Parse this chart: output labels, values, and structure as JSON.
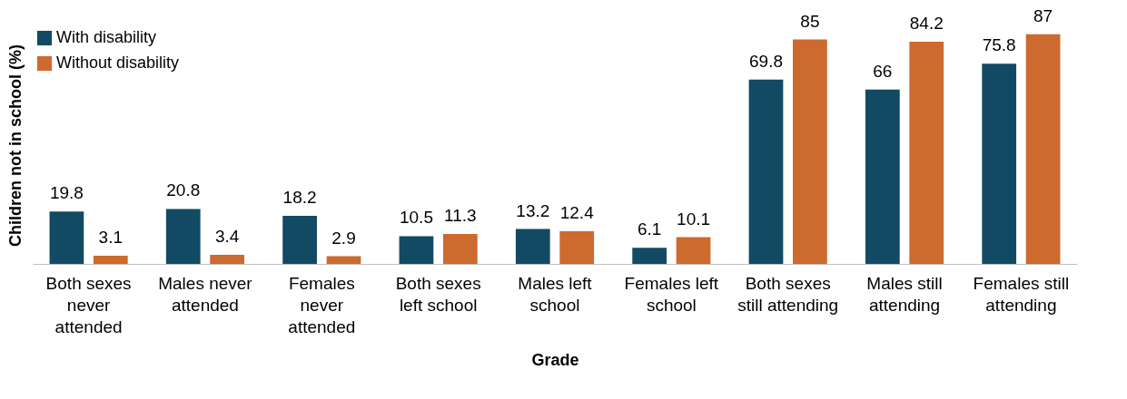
{
  "chart_data": {
    "type": "bar",
    "xlabel": "Grade",
    "ylabel": "Children not in school (%)",
    "categories": [
      "Both sexes never attended",
      "Males never attended",
      "Females never attended",
      "Both sexes left school",
      "Males left school",
      "Females left school",
      "Both sexes still attending",
      "Males still attending",
      "Females still attending"
    ],
    "series": [
      {
        "name": "With disability",
        "color": "#134a63",
        "values": [
          19.8,
          20.8,
          18.2,
          10.5,
          13.2,
          6.1,
          69.8,
          66,
          75.8
        ]
      },
      {
        "name": "Without disability",
        "color": "#cd6a2e",
        "values": [
          3.1,
          3.4,
          2.9,
          11.3,
          12.4,
          10.1,
          85,
          84.2,
          87
        ]
      }
    ],
    "data_labels": true,
    "legend": "top left",
    "grid": false
  }
}
